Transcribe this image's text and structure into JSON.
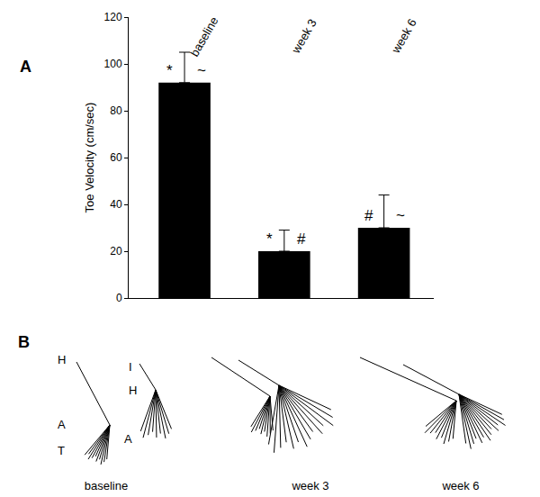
{
  "chart_data": {
    "type": "bar",
    "categories": [
      "baseline",
      "week 3",
      "week 6"
    ],
    "values": [
      92,
      20,
      30
    ],
    "error": [
      13,
      9,
      14
    ],
    "significance_marks": [
      [
        "*",
        "~"
      ],
      [
        "*",
        "#"
      ],
      [
        "#",
        "~"
      ]
    ],
    "color": "#000000",
    "y_label": "Toe Velocity (cm/sec)",
    "ylim": [
      0,
      120
    ],
    "yticks": [
      0,
      20,
      40,
      60,
      80,
      100,
      120
    ],
    "grid": false,
    "tick_labels": "y"
  },
  "panel_labels": [
    "A",
    "B"
  ],
  "stick_figures": {
    "captions": [
      "baseline",
      "week 3",
      "week 6"
    ],
    "joint_labels": [
      [
        "H",
        "A",
        "T"
      ],
      [
        "I",
        "H",
        "A"
      ]
    ]
  }
}
